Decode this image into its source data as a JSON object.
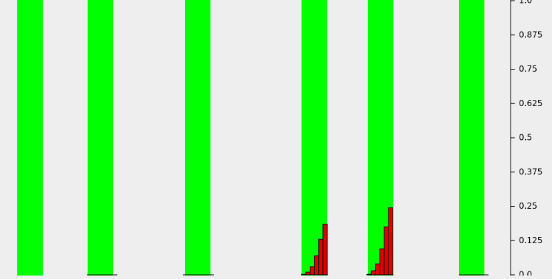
{
  "chart_data": {
    "type": "bar",
    "ylim": [
      0,
      1
    ],
    "y_ticks": [
      "0.0",
      "0.125",
      "0.25",
      "0.375",
      "0.5",
      "0.625",
      "0.75",
      "0.875",
      "1.0"
    ],
    "y_tick_values": [
      0,
      0.125,
      0.25,
      0.375,
      0.5,
      0.625,
      0.75,
      0.875,
      1.0
    ],
    "yaxis_position": "right",
    "grid": false,
    "xlim": [
      0,
      740
    ],
    "colors": {
      "background": "#eeeeee",
      "green_band": "#00ff00",
      "bar_fill": "#e00000",
      "bar_stroke": "#000000",
      "axis": "#000000"
    },
    "green_bands": [
      {
        "x_start": 25,
        "x_end": 62
      },
      {
        "x_start": 127,
        "x_end": 164
      },
      {
        "x_start": 268,
        "x_end": 305
      },
      {
        "x_start": 437,
        "x_end": 474
      },
      {
        "x_start": 533,
        "x_end": 570
      },
      {
        "x_start": 665,
        "x_end": 702
      }
    ],
    "baseline_segments": [
      {
        "x_start": 126,
        "x_end": 170
      },
      {
        "x_start": 265,
        "x_end": 310
      },
      {
        "x_start": 665,
        "x_end": 708
      }
    ],
    "bar_groups": [
      {
        "x_start": 437,
        "bar_width": 6.2,
        "values": [
          0.002,
          0.01,
          0.03,
          0.07,
          0.13,
          0.185
        ]
      },
      {
        "x_start": 532,
        "bar_width": 6.2,
        "values": [
          0.002,
          0.015,
          0.04,
          0.095,
          0.175,
          0.245
        ]
      }
    ]
  }
}
